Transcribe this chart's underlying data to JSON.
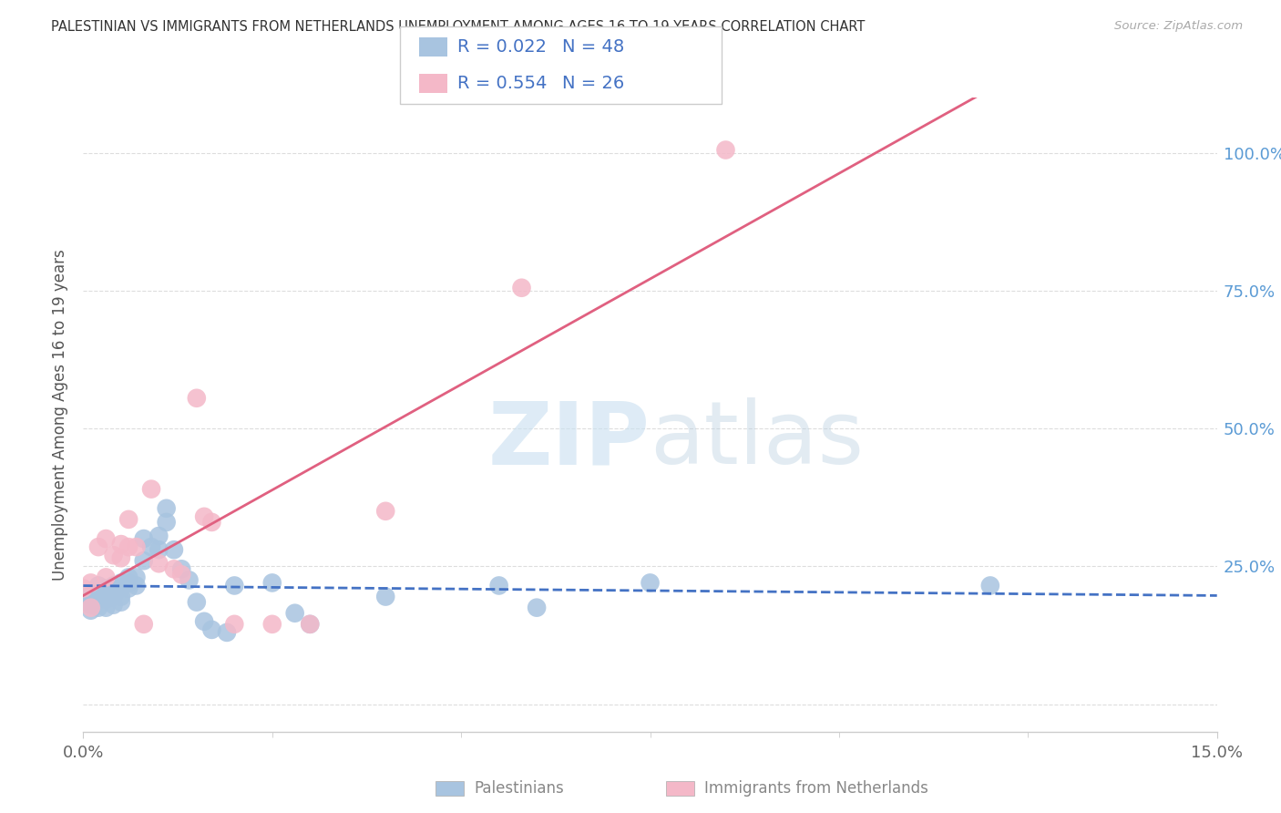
{
  "title": "PALESTINIAN VS IMMIGRANTS FROM NETHERLANDS UNEMPLOYMENT AMONG AGES 16 TO 19 YEARS CORRELATION CHART",
  "source": "Source: ZipAtlas.com",
  "ylabel": "Unemployment Among Ages 16 to 19 years",
  "xlim": [
    0.0,
    0.15
  ],
  "ylim": [
    -0.05,
    1.1
  ],
  "xtick_major": [
    0.0,
    0.15
  ],
  "xtick_major_labels": [
    "0.0%",
    "15.0%"
  ],
  "xtick_minor": [
    0.025,
    0.05,
    0.075,
    0.1,
    0.125
  ],
  "ytick_positions": [
    0.0,
    0.25,
    0.5,
    0.75,
    1.0
  ],
  "ytick_labels": [
    "",
    "25.0%",
    "50.0%",
    "75.0%",
    "100.0%"
  ],
  "series1_color": "#a8c4e0",
  "series2_color": "#f4b8c8",
  "trend1_color": "#4472c4",
  "trend2_color": "#e06080",
  "series1_label": "Palestinians",
  "series2_label": "Immigrants from Netherlands",
  "r1": "0.022",
  "n1": "48",
  "r2": "0.554",
  "n2": "26",
  "watermark_color": "#d5e8f5",
  "palestinians_x": [
    0.0,
    0.001,
    0.001,
    0.001,
    0.001,
    0.002,
    0.002,
    0.002,
    0.003,
    0.003,
    0.003,
    0.003,
    0.004,
    0.004,
    0.004,
    0.004,
    0.005,
    0.005,
    0.005,
    0.005,
    0.006,
    0.006,
    0.006,
    0.007,
    0.007,
    0.008,
    0.008,
    0.009,
    0.01,
    0.01,
    0.011,
    0.011,
    0.012,
    0.013,
    0.014,
    0.015,
    0.016,
    0.017,
    0.019,
    0.02,
    0.025,
    0.028,
    0.03,
    0.04,
    0.055,
    0.06,
    0.075,
    0.12
  ],
  "palestinians_y": [
    0.195,
    0.2,
    0.185,
    0.18,
    0.17,
    0.215,
    0.195,
    0.175,
    0.21,
    0.2,
    0.19,
    0.175,
    0.215,
    0.2,
    0.195,
    0.18,
    0.22,
    0.21,
    0.195,
    0.185,
    0.23,
    0.22,
    0.21,
    0.23,
    0.215,
    0.3,
    0.26,
    0.285,
    0.305,
    0.28,
    0.355,
    0.33,
    0.28,
    0.245,
    0.225,
    0.185,
    0.15,
    0.135,
    0.13,
    0.215,
    0.22,
    0.165,
    0.145,
    0.195,
    0.215,
    0.175,
    0.22,
    0.215
  ],
  "netherlands_x": [
    0.0,
    0.001,
    0.001,
    0.002,
    0.003,
    0.003,
    0.004,
    0.005,
    0.005,
    0.006,
    0.006,
    0.007,
    0.008,
    0.009,
    0.01,
    0.012,
    0.013,
    0.015,
    0.016,
    0.017,
    0.02,
    0.025,
    0.03,
    0.04,
    0.058,
    0.085
  ],
  "netherlands_y": [
    0.21,
    0.22,
    0.175,
    0.285,
    0.3,
    0.23,
    0.27,
    0.265,
    0.29,
    0.335,
    0.285,
    0.285,
    0.145,
    0.39,
    0.255,
    0.245,
    0.235,
    0.555,
    0.34,
    0.33,
    0.145,
    0.145,
    0.145,
    0.35,
    0.755,
    1.005
  ]
}
